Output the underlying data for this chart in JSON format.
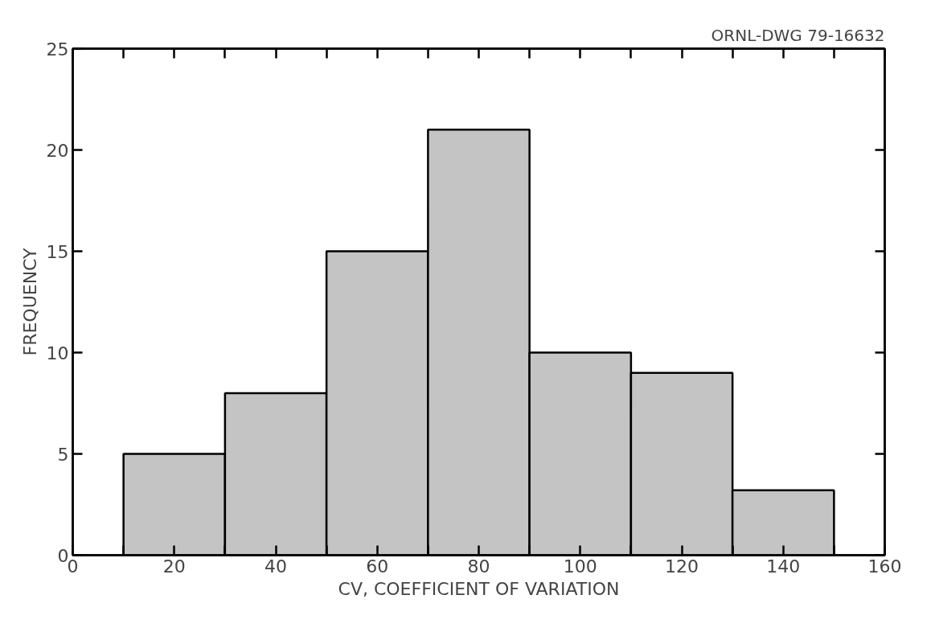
{
  "chart_data": {
    "type": "histogram",
    "xlabel": "CV, COEFFICIENT OF VARIATION",
    "ylabel": "FREQUENCY",
    "bins": [
      10,
      30,
      50,
      70,
      90,
      110,
      130,
      150
    ],
    "values": [
      5,
      8,
      15,
      21,
      10,
      9,
      3.2
    ],
    "color": "#c4c4c4",
    "xlim": [
      0,
      160
    ],
    "ylim": [
      0,
      25
    ],
    "xticks": [
      0,
      {
        "value": 10,
        "label": null
      },
      20,
      {
        "value": 30,
        "label": null
      },
      40,
      {
        "value": 50,
        "label": null
      },
      60,
      {
        "value": 70,
        "label": null
      },
      80,
      {
        "value": 90,
        "label": null
      },
      100,
      {
        "value": 110,
        "label": null
      },
      120,
      {
        "value": 130,
        "label": null
      },
      140,
      {
        "value": 150,
        "label": null
      },
      160
    ],
    "yticks": [
      0,
      5,
      10,
      15,
      20,
      25
    ],
    "grid": false,
    "annotations": [
      "ORNL-DWG 79-16632"
    ]
  }
}
